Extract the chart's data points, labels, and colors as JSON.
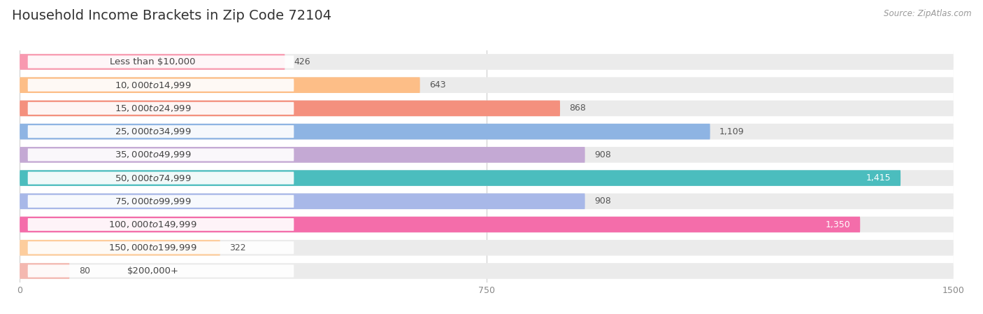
{
  "title": "Household Income Brackets in Zip Code 72104",
  "source": "Source: ZipAtlas.com",
  "categories": [
    "Less than $10,000",
    "$10,000 to $14,999",
    "$15,000 to $24,999",
    "$25,000 to $34,999",
    "$35,000 to $49,999",
    "$50,000 to $74,999",
    "$75,000 to $99,999",
    "$100,000 to $149,999",
    "$150,000 to $199,999",
    "$200,000+"
  ],
  "values": [
    426,
    643,
    868,
    1109,
    908,
    1415,
    908,
    1350,
    322,
    80
  ],
  "bar_colors": [
    "#F899B0",
    "#FDBE87",
    "#F4907E",
    "#8EB4E3",
    "#C4A9D4",
    "#4BBDBE",
    "#A8B8E8",
    "#F46DAA",
    "#FDCD9D",
    "#F4B8B0"
  ],
  "xlim": [
    0,
    1500
  ],
  "xticks": [
    0,
    750,
    1500
  ],
  "title_fontsize": 14,
  "label_fontsize": 9.5,
  "value_fontsize": 9
}
